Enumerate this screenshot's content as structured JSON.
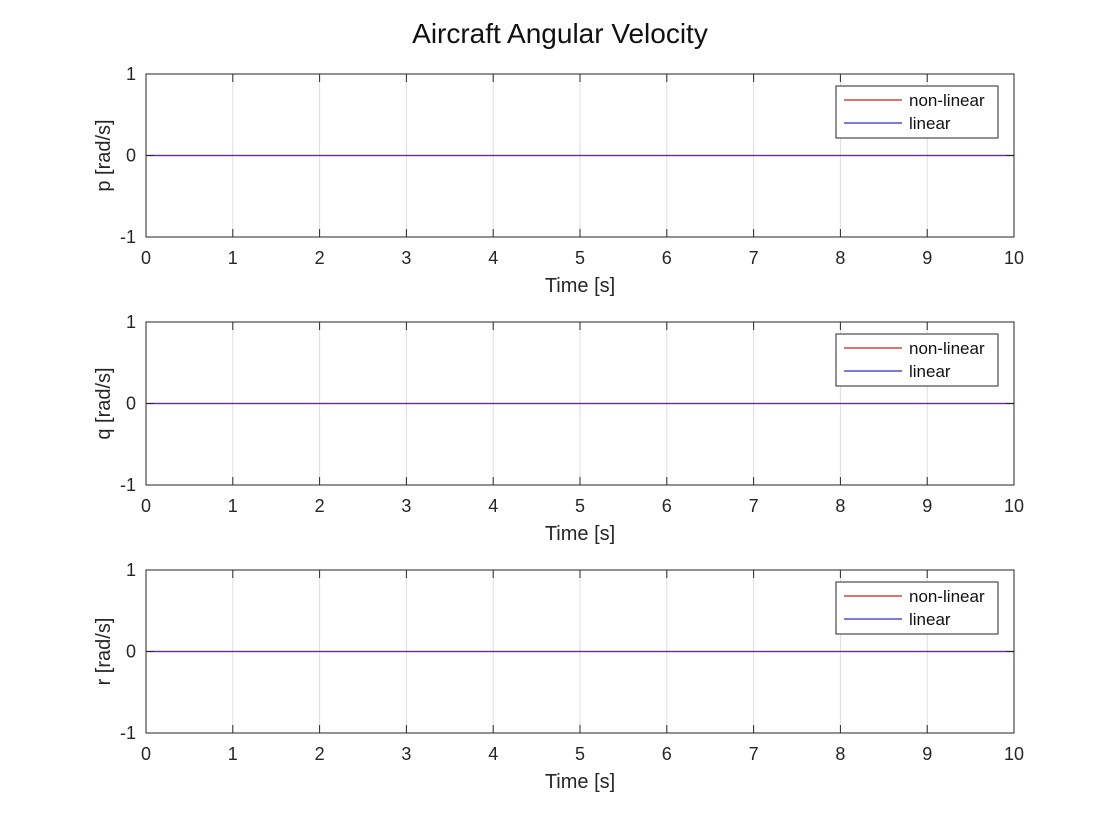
{
  "figure": {
    "title": "Aircraft Angular Velocity"
  },
  "colors": {
    "non_linear": "#d11f1f",
    "linear": "#2b2bd1",
    "grid": "#dedede",
    "axis": "#262626"
  },
  "chart_data": [
    {
      "type": "line",
      "xlabel": "Time [s]",
      "ylabel": "p [rad/s]",
      "xlim": [
        0,
        10
      ],
      "ylim": [
        -1,
        1
      ],
      "xticks": [
        "0",
        "1",
        "2",
        "3",
        "4",
        "5",
        "6",
        "7",
        "8",
        "9",
        "10"
      ],
      "yticks": [
        "-1",
        "0",
        "1"
      ],
      "grid": "x",
      "legend_position": "top-right",
      "series": [
        {
          "name": "non-linear",
          "color": "#d11f1f",
          "x": [
            0,
            10
          ],
          "y": [
            0,
            0
          ]
        },
        {
          "name": "linear",
          "color": "#2b2bd1",
          "x": [
            0,
            10
          ],
          "y": [
            0,
            0
          ]
        }
      ]
    },
    {
      "type": "line",
      "xlabel": "Time [s]",
      "ylabel": "q [rad/s]",
      "xlim": [
        0,
        10
      ],
      "ylim": [
        -1,
        1
      ],
      "xticks": [
        "0",
        "1",
        "2",
        "3",
        "4",
        "5",
        "6",
        "7",
        "8",
        "9",
        "10"
      ],
      "yticks": [
        "-1",
        "0",
        "1"
      ],
      "grid": "x",
      "legend_position": "top-right",
      "series": [
        {
          "name": "non-linear",
          "color": "#d11f1f",
          "x": [
            0,
            10
          ],
          "y": [
            0,
            0
          ]
        },
        {
          "name": "linear",
          "color": "#2b2bd1",
          "x": [
            0,
            10
          ],
          "y": [
            0,
            0
          ]
        }
      ]
    },
    {
      "type": "line",
      "xlabel": "Time [s]",
      "ylabel": "r [rad/s]",
      "xlim": [
        0,
        10
      ],
      "ylim": [
        -1,
        1
      ],
      "xticks": [
        "0",
        "1",
        "2",
        "3",
        "4",
        "5",
        "6",
        "7",
        "8",
        "9",
        "10"
      ],
      "yticks": [
        "-1",
        "0",
        "1"
      ],
      "grid": "x",
      "legend_position": "top-right",
      "series": [
        {
          "name": "non-linear",
          "color": "#d11f1f",
          "x": [
            0,
            10
          ],
          "y": [
            0,
            0
          ]
        },
        {
          "name": "linear",
          "color": "#2b2bd1",
          "x": [
            0,
            10
          ],
          "y": [
            0,
            0
          ]
        }
      ]
    }
  ]
}
